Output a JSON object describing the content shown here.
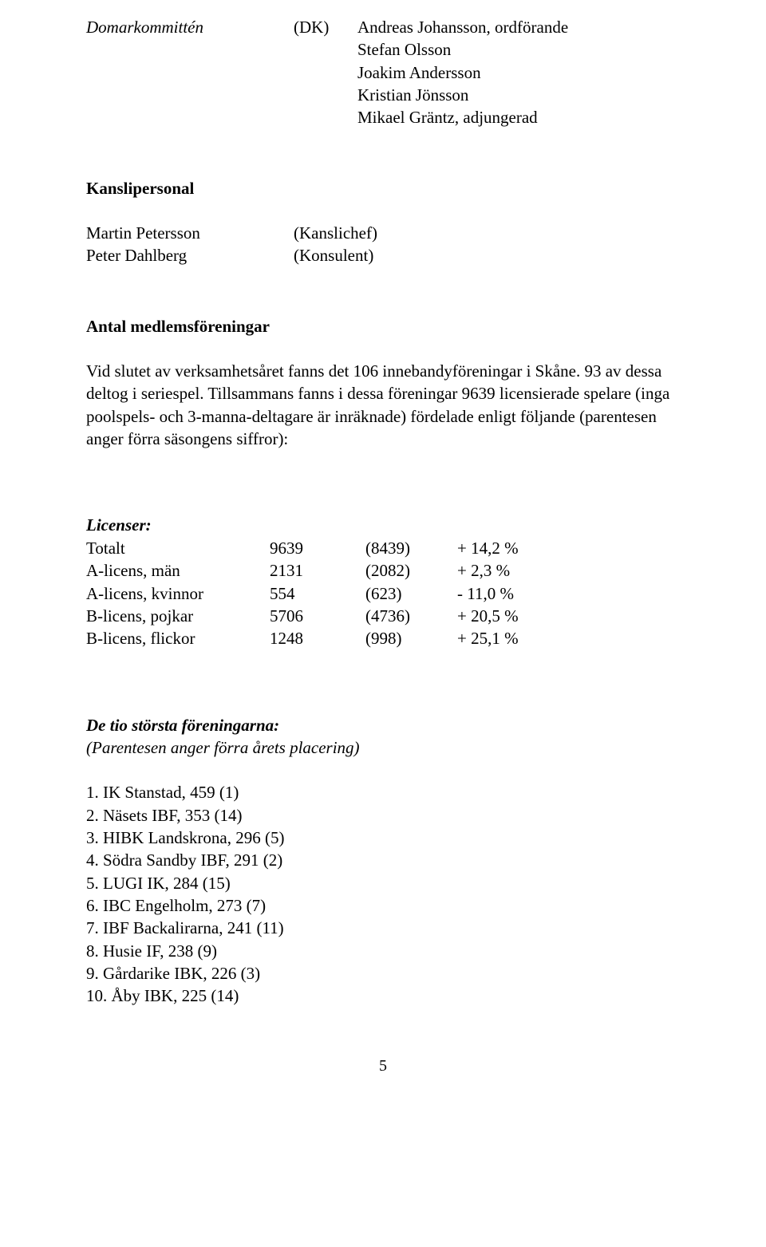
{
  "committee": {
    "label": "Domarkommittén",
    "abbr": "(DK)",
    "chair": "Andreas Johansson, ordförande",
    "members": [
      "Stefan Olsson",
      "Joakim Andersson",
      "Kristian Jönsson",
      "Mikael Gräntz, adjungerad"
    ]
  },
  "kansli": {
    "heading": "Kanslipersonal",
    "rows": [
      {
        "name": "Martin Petersson",
        "role": "(Kanslichef)"
      },
      {
        "name": "Peter Dahlberg",
        "role": "(Konsulent)"
      }
    ]
  },
  "membership": {
    "heading": "Antal medlemsföreningar",
    "paragraph": "Vid slutet av verksamhetsåret fanns det 106 innebandyföreningar i Skåne. 93 av dessa deltog i seriespel. Tillsammans fanns i dessa föreningar 9639 licensierade spelare (inga poolspels- och 3-manna-deltagare är inräknade) fördelade enligt följande (parentesen anger förra säsongens siffror):"
  },
  "licenses": {
    "heading": "Licenser:",
    "rows": [
      {
        "label": "Totalt",
        "val": "9639",
        "prev": "(8439)",
        "change": "+ 14,2 %"
      },
      {
        "label": "A-licens, män",
        "val": "2131",
        "prev": "(2082)",
        "change": "+   2,3 %"
      },
      {
        "label": "A-licens, kvinnor",
        "val": "554",
        "prev": "(623)",
        "change": "-  11,0 %"
      },
      {
        "label": "B-licens, pojkar",
        "val": "5706",
        "prev": "(4736)",
        "change": "+ 20,5 %"
      },
      {
        "label": "B-licens, flickor",
        "val": "1248",
        "prev": "(998)",
        "change": "+ 25,1 %"
      }
    ]
  },
  "topClubs": {
    "heading": "De tio största föreningarna:",
    "subnote": "(Parentesen anger förra årets placering)",
    "items": [
      "1. IK Stanstad, 459 (1)",
      "2. Näsets IBF, 353 (14)",
      "3. HIBK Landskrona, 296 (5)",
      "4. Södra Sandby IBF, 291 (2)",
      "5. LUGI IK, 284 (15)",
      "6. IBC Engelholm, 273 (7)",
      "7. IBF Backalirarna, 241 (11)",
      "8. Husie IF, 238 (9)",
      "9. Gårdarike IBK, 226 (3)",
      "10. Åby IBK, 225 (14)"
    ]
  },
  "pageNumber": "5"
}
